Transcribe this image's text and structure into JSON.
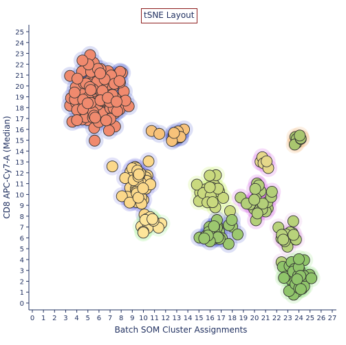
{
  "chart_data": {
    "type": "scatter",
    "title": "tSNE Layout",
    "xlabel": "Batch SOM Cluster Assignments",
    "ylabel": "CD8 APC-Cy7-A (Median)",
    "xlim": [
      0,
      27
    ],
    "ylim": [
      0,
      25
    ],
    "x_ticks": [
      0,
      1,
      2,
      3,
      4,
      5,
      6,
      7,
      8,
      9,
      10,
      11,
      12,
      13,
      14,
      15,
      16,
      17,
      18,
      19,
      20,
      21,
      22,
      23,
      24,
      25,
      26,
      27
    ],
    "y_ticks": [
      0,
      1,
      2,
      3,
      4,
      5,
      6,
      7,
      8,
      9,
      10,
      11,
      12,
      13,
      14,
      15,
      16,
      17,
      18,
      19,
      20,
      21,
      22,
      23,
      24,
      25
    ],
    "grid": false,
    "legend": "none",
    "clusters": [
      {
        "x": 6.0,
        "y": 19.0,
        "sx": 2.3,
        "sy": 2.8,
        "n": 120,
        "color": "#f08a6e",
        "halo": "#4455cc"
      },
      {
        "x": 12.5,
        "y": 15.5,
        "sx": 1.4,
        "sy": 0.6,
        "n": 14,
        "color": "#f7c27a",
        "halo": "#4455cc"
      },
      {
        "x": 9.5,
        "y": 11.0,
        "sx": 1.2,
        "sy": 2.5,
        "n": 45,
        "color": "#fbd88a",
        "halo": "#6666dd"
      },
      {
        "x": 10.5,
        "y": 7.5,
        "sx": 0.9,
        "sy": 0.8,
        "n": 12,
        "color": "#fde59a",
        "halo": "#99ee88"
      },
      {
        "x": 16.0,
        "y": 10.0,
        "sx": 1.2,
        "sy": 1.4,
        "n": 24,
        "color": "#c9d97e",
        "halo": "#bbee44"
      },
      {
        "x": 16.5,
        "y": 6.5,
        "sx": 1.3,
        "sy": 1.2,
        "n": 26,
        "color": "#9cc86f",
        "halo": "#4455cc"
      },
      {
        "x": 20.5,
        "y": 9.5,
        "sx": 1.1,
        "sy": 1.6,
        "n": 20,
        "color": "#b3cf79",
        "halo": "#cc44dd"
      },
      {
        "x": 23.0,
        "y": 6.0,
        "sx": 1.0,
        "sy": 1.2,
        "n": 16,
        "color": "#b8d27b",
        "halo": "#dd99dd"
      },
      {
        "x": 23.8,
        "y": 2.5,
        "sx": 1.3,
        "sy": 1.2,
        "n": 34,
        "color": "#8fc46a",
        "halo": "#88dd77"
      },
      {
        "x": 20.5,
        "y": 13.0,
        "sx": 0.6,
        "sy": 0.4,
        "n": 5,
        "color": "#e6d88a",
        "halo": "#cc44dd"
      },
      {
        "x": 24.0,
        "y": 15.0,
        "sx": 0.5,
        "sy": 0.4,
        "n": 7,
        "color": "#a9c66f",
        "halo": "#eeaa66"
      }
    ]
  }
}
